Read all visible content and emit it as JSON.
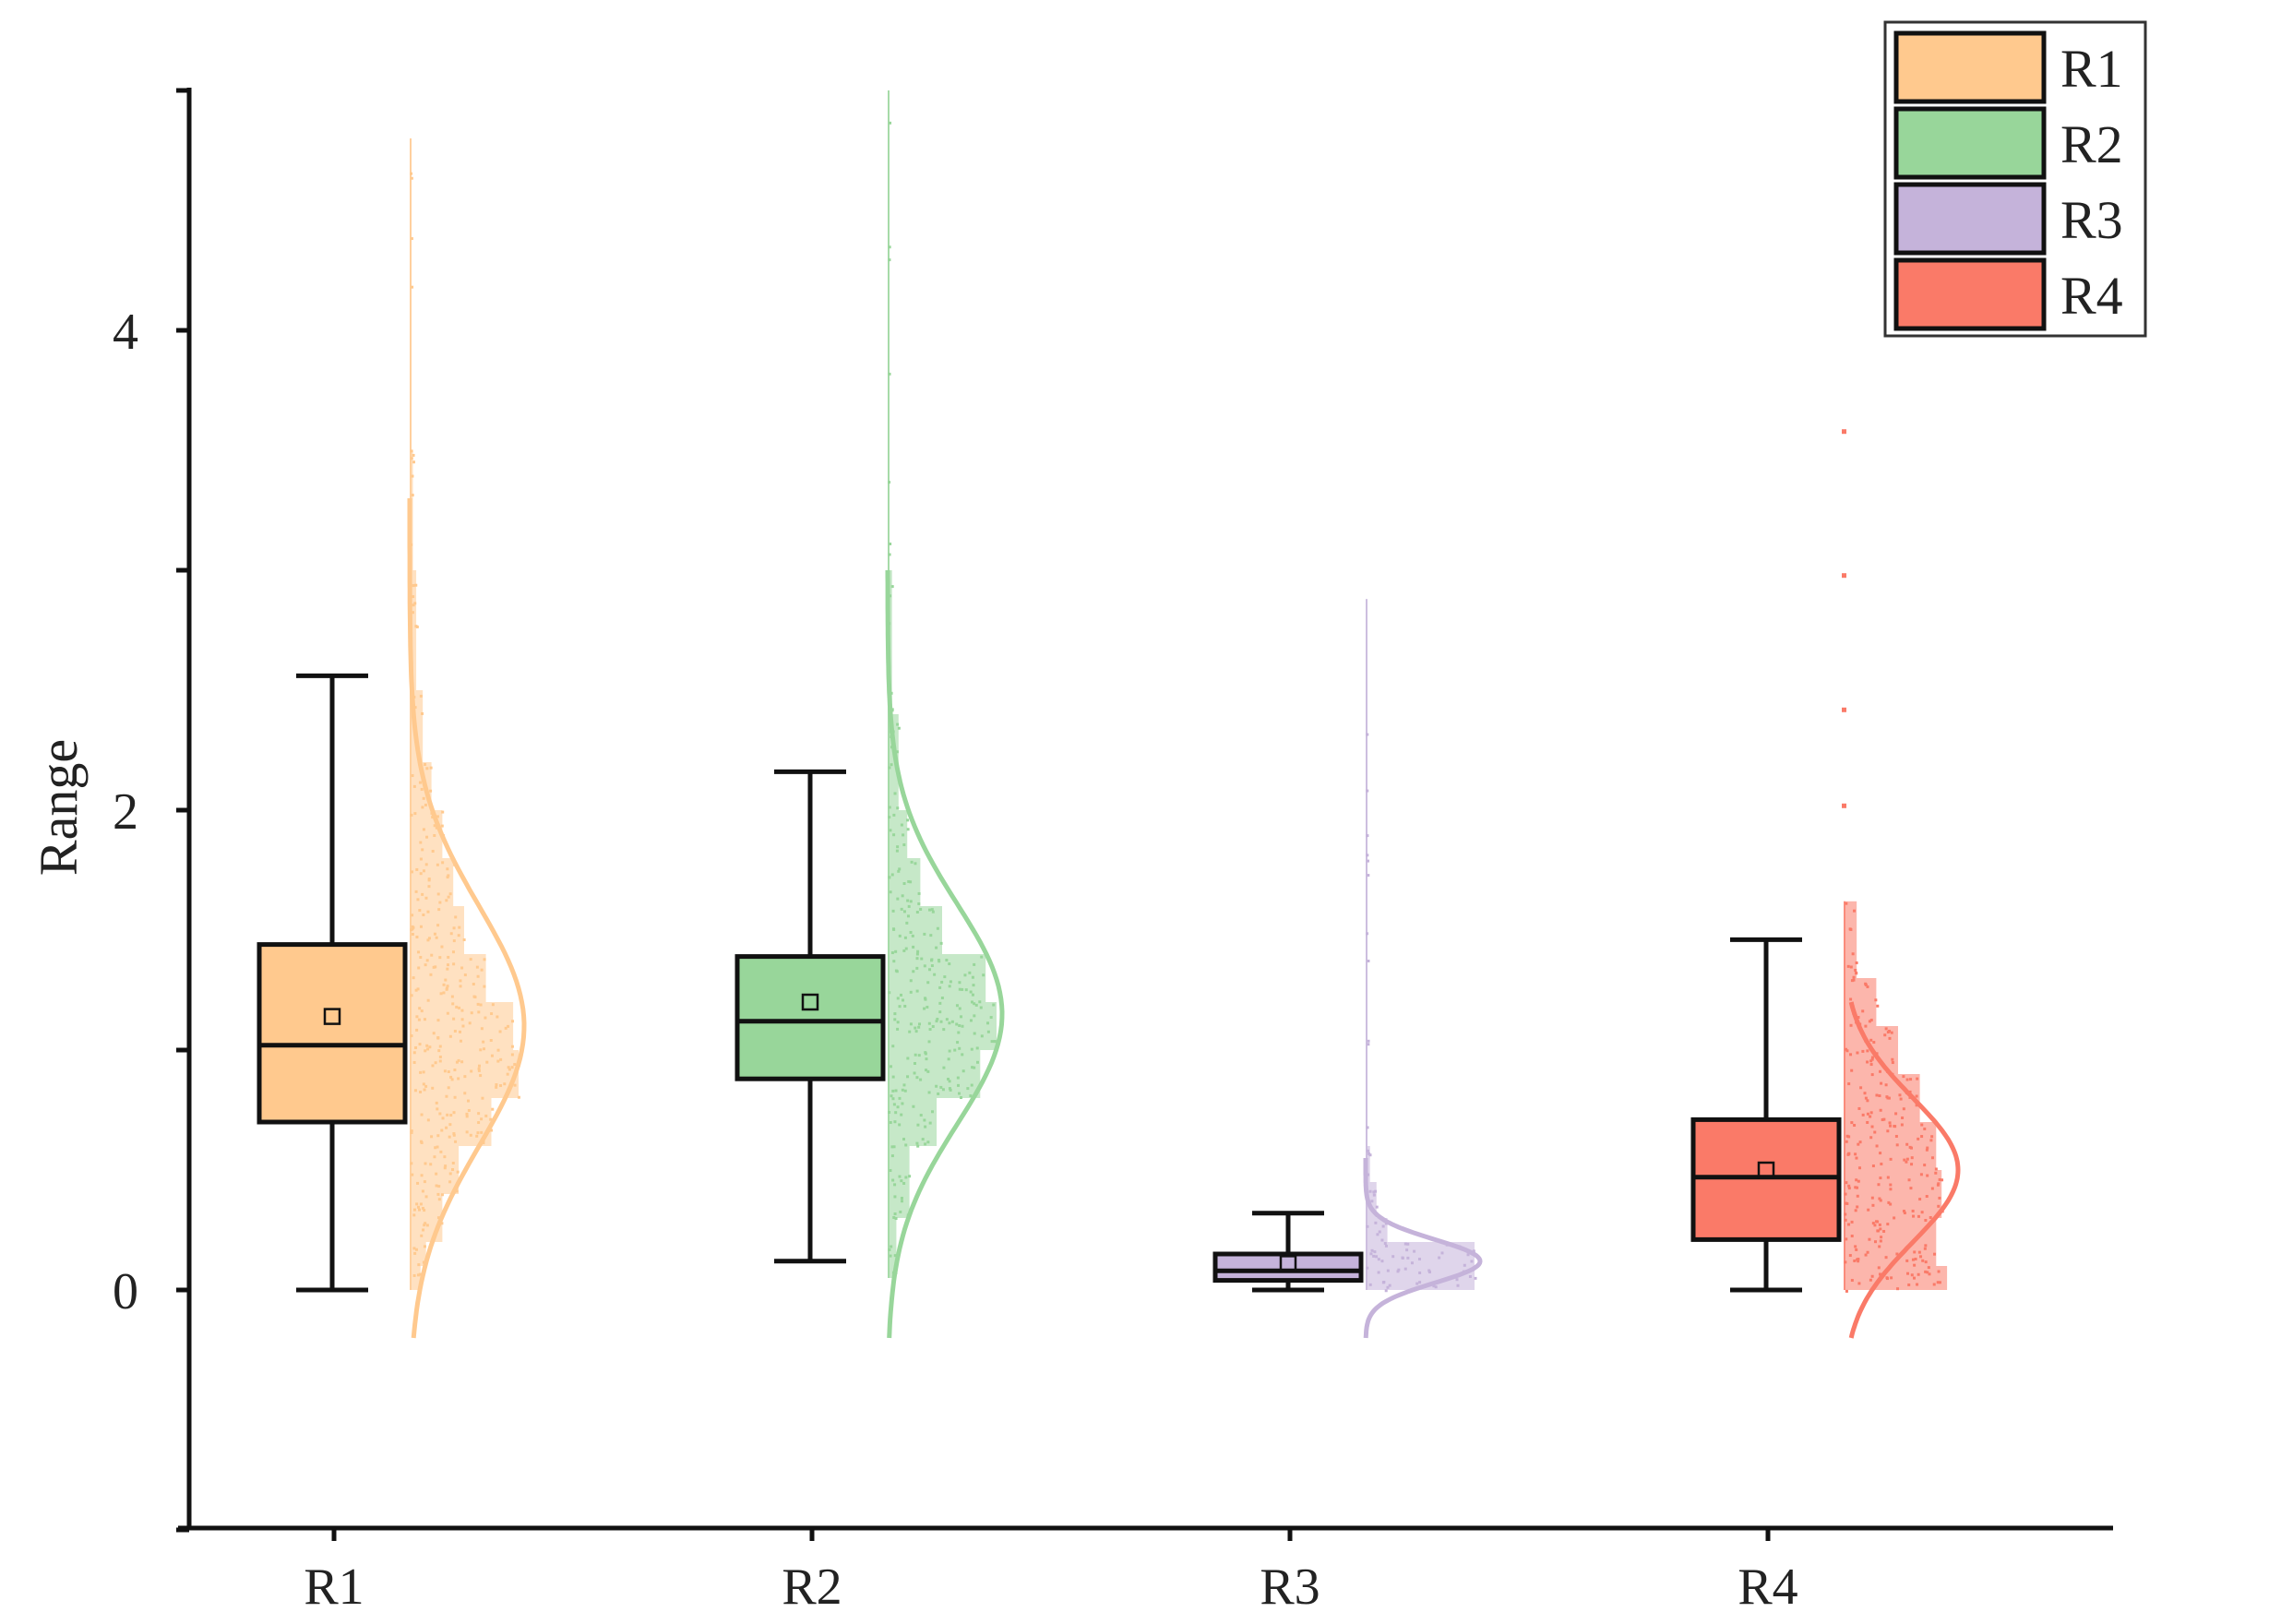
{
  "chart_data": {
    "type": "box-half-violin (raincloud)",
    "title": "",
    "xlabel": "",
    "ylabel": "Range",
    "ylim": [
      -1,
      5
    ],
    "yticks": [
      0,
      2,
      4
    ],
    "categories": [
      "R1",
      "R2",
      "R3",
      "R4"
    ],
    "legend": {
      "position": "top-right",
      "entries": [
        "R1",
        "R2",
        "R3",
        "R4"
      ]
    },
    "series": [
      {
        "name": "R1",
        "color": "#FFC98E",
        "box": {
          "whisker_low": 0.0,
          "q1": 0.7,
          "median": 1.02,
          "q3": 1.44,
          "whisker_high": 2.56,
          "mean": 1.14
        },
        "distribution": {
          "data_min": 0.0,
          "data_max": 4.8,
          "curve_mean": 1.1,
          "curve_sd": 0.5,
          "curve_range": [
            -0.2,
            3.3
          ],
          "histogram": [
            [
              0.0,
              0.1,
              0.1
            ],
            [
              0.1,
              0.2,
              0.15
            ],
            [
              0.2,
              0.4,
              0.3
            ],
            [
              0.4,
              0.6,
              0.45
            ],
            [
              0.6,
              0.8,
              0.75
            ],
            [
              0.8,
              1.0,
              1.0
            ],
            [
              1.0,
              1.2,
              0.95
            ],
            [
              1.2,
              1.4,
              0.7
            ],
            [
              1.4,
              1.6,
              0.5
            ],
            [
              1.6,
              1.8,
              0.4
            ],
            [
              1.8,
              2.0,
              0.3
            ],
            [
              2.0,
              2.2,
              0.2
            ],
            [
              2.2,
              2.5,
              0.12
            ],
            [
              2.5,
              3.0,
              0.06
            ],
            [
              3.0,
              3.5,
              0.03
            ],
            [
              3.5,
              4.8,
              0.01
            ]
          ]
        }
      },
      {
        "name": "R2",
        "color": "#98D69A",
        "box": {
          "whisker_low": 0.12,
          "q1": 0.88,
          "median": 1.12,
          "q3": 1.39,
          "whisker_high": 2.16,
          "mean": 1.2
        },
        "distribution": {
          "data_min": 0.05,
          "data_max": 5.0,
          "curve_mean": 1.15,
          "curve_sd": 0.46,
          "curve_range": [
            -0.2,
            3.0
          ],
          "histogram": [
            [
              0.05,
              0.3,
              0.08
            ],
            [
              0.3,
              0.6,
              0.2
            ],
            [
              0.6,
              0.8,
              0.45
            ],
            [
              0.8,
              1.0,
              0.85
            ],
            [
              1.0,
              1.2,
              1.0
            ],
            [
              1.2,
              1.4,
              0.9
            ],
            [
              1.4,
              1.6,
              0.5
            ],
            [
              1.6,
              1.8,
              0.3
            ],
            [
              1.8,
              2.0,
              0.18
            ],
            [
              2.0,
              2.4,
              0.1
            ],
            [
              2.4,
              3.0,
              0.04
            ],
            [
              3.0,
              5.0,
              0.01
            ]
          ]
        }
      },
      {
        "name": "R3",
        "color": "#C5B3DA",
        "box": {
          "whisker_low": 0.0,
          "q1": 0.04,
          "median": 0.08,
          "q3": 0.15,
          "whisker_high": 0.32,
          "mean": 0.11
        },
        "distribution": {
          "data_min": 0.0,
          "data_max": 2.88,
          "curve_mean": 0.12,
          "curve_sd": 0.09,
          "curve_range": [
            -0.2,
            0.55
          ],
          "histogram": [
            [
              0.0,
              0.2,
              1.0
            ],
            [
              0.2,
              0.3,
              0.2
            ],
            [
              0.3,
              0.45,
              0.1
            ],
            [
              0.45,
              0.6,
              0.04
            ],
            [
              0.6,
              1.8,
              0.015
            ],
            [
              1.8,
              2.88,
              0.008
            ]
          ]
        }
      },
      {
        "name": "R4",
        "color": "#FA7A68",
        "box": {
          "whisker_low": 0.0,
          "q1": 0.21,
          "median": 0.47,
          "q3": 0.71,
          "whisker_high": 1.46,
          "mean": 0.5
        },
        "distribution": {
          "data_min": 0.0,
          "data_max": 1.62,
          "outliers": [
            2.02,
            2.42,
            2.98,
            3.58
          ],
          "curve_mean": 0.5,
          "curve_sd": 0.3,
          "curve_range": [
            -0.2,
            1.2
          ],
          "histogram": [
            [
              0.0,
              0.1,
              0.95
            ],
            [
              0.1,
              0.3,
              0.85
            ],
            [
              0.3,
              0.5,
              0.9
            ],
            [
              0.5,
              0.7,
              0.85
            ],
            [
              0.7,
              0.9,
              0.7
            ],
            [
              0.9,
              1.1,
              0.5
            ],
            [
              1.1,
              1.3,
              0.3
            ],
            [
              1.3,
              1.62,
              0.12
            ]
          ]
        }
      }
    ]
  }
}
